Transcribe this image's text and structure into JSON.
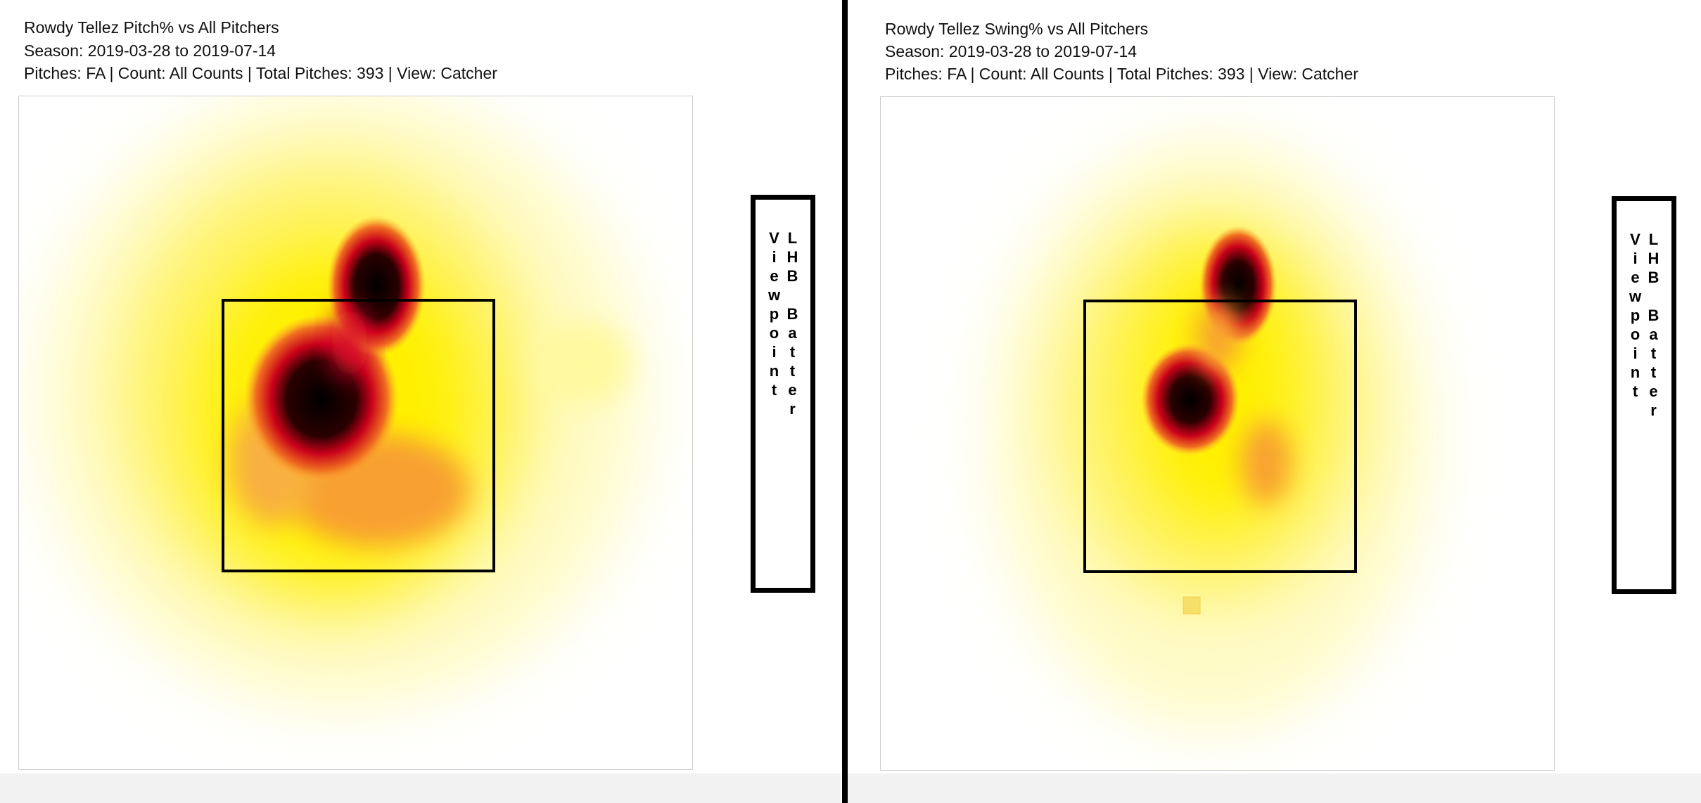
{
  "panels": [
    {
      "title": "Rowdy Tellez Pitch% vs All Pitchers",
      "season": "Season: 2019-03-28 to 2019-07-14",
      "details": "Pitches: FA | Count: All Counts | Total Pitches: 393 | View: Catcher",
      "side_label": "LHB Batter Viewpoint"
    },
    {
      "title": "Rowdy Tellez Swing% vs All Pitchers",
      "season": "Season: 2019-03-28 to 2019-07-14",
      "details": "Pitches: FA | Count: All Counts | Total Pitches: 393 | View: Catcher",
      "side_label": "LHB Batter Viewpoint"
    }
  ]
}
